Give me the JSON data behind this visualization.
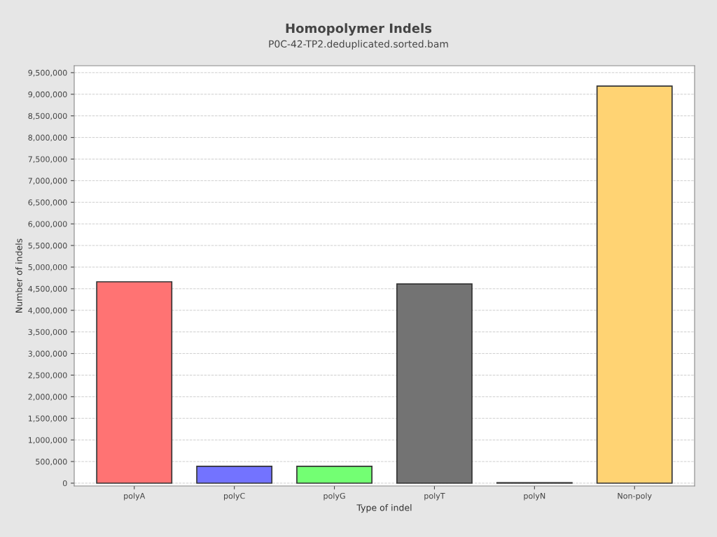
{
  "chart_data": {
    "type": "bar",
    "title": "Homopolymer Indels",
    "subtitle": "P0C-42-TP2.deduplicated.sorted.bam",
    "xlabel": "Type of indel",
    "ylabel": "Number of indels",
    "categories": [
      "polyA",
      "polyC",
      "polyG",
      "polyT",
      "polyN",
      "Non-poly"
    ],
    "values": [
      4660000,
      390000,
      390000,
      4610000,
      10000,
      9190000
    ],
    "colors": [
      "#ff7373",
      "#7373ff",
      "#73ff73",
      "#737373",
      "#ffff73",
      "#ffd373"
    ],
    "ylim": [
      -65000,
      9660000
    ],
    "yticks": [
      {
        "value": 0,
        "label": "0"
      },
      {
        "value": 500000,
        "label": "500,000"
      },
      {
        "value": 1000000,
        "label": "1,000,000"
      },
      {
        "value": 1500000,
        "label": "1,500,000"
      },
      {
        "value": 2000000,
        "label": "2,000,000"
      },
      {
        "value": 2500000,
        "label": "2,500,000"
      },
      {
        "value": 3000000,
        "label": "3,000,000"
      },
      {
        "value": 3500000,
        "label": "3,500,000"
      },
      {
        "value": 4000000,
        "label": "4,000,000"
      },
      {
        "value": 4500000,
        "label": "4,500,000"
      },
      {
        "value": 5000000,
        "label": "5,000,000"
      },
      {
        "value": 5500000,
        "label": "5,500,000"
      },
      {
        "value": 6000000,
        "label": "6,000,000"
      },
      {
        "value": 6500000,
        "label": "6,500,000"
      },
      {
        "value": 7000000,
        "label": "7,000,000"
      },
      {
        "value": 7500000,
        "label": "7,500,000"
      },
      {
        "value": 8000000,
        "label": "8,000,000"
      },
      {
        "value": 8500000,
        "label": "8,500,000"
      },
      {
        "value": 9000000,
        "label": "9,000,000"
      },
      {
        "value": 9500000,
        "label": "9,500,000"
      }
    ],
    "grid": "y",
    "legend": false
  }
}
